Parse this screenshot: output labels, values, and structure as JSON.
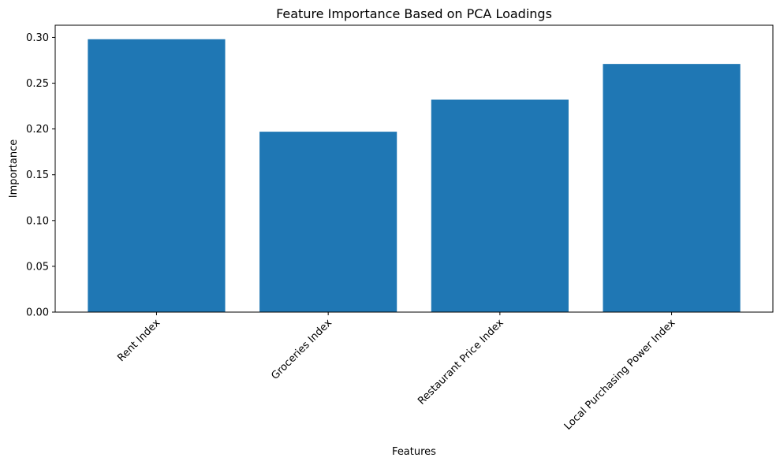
{
  "chart_data": {
    "type": "bar",
    "title": "Feature Importance Based on PCA Loadings",
    "xlabel": "Features",
    "ylabel": "Importance",
    "categories": [
      "Rent Index",
      "Groceries Index",
      "Restaurant Price Index",
      "Local Purchasing Power Index"
    ],
    "values": [
      0.298,
      0.197,
      0.232,
      0.271
    ],
    "ylim": [
      0,
      0.3133
    ],
    "yticks": [
      0.0,
      0.05,
      0.1,
      0.15,
      0.2,
      0.25,
      0.3
    ],
    "ytick_labels": [
      "0.00",
      "0.05",
      "0.10",
      "0.15",
      "0.20",
      "0.25",
      "0.30"
    ],
    "bar_color": "#1f77b4",
    "grid": false,
    "legend": "none"
  }
}
